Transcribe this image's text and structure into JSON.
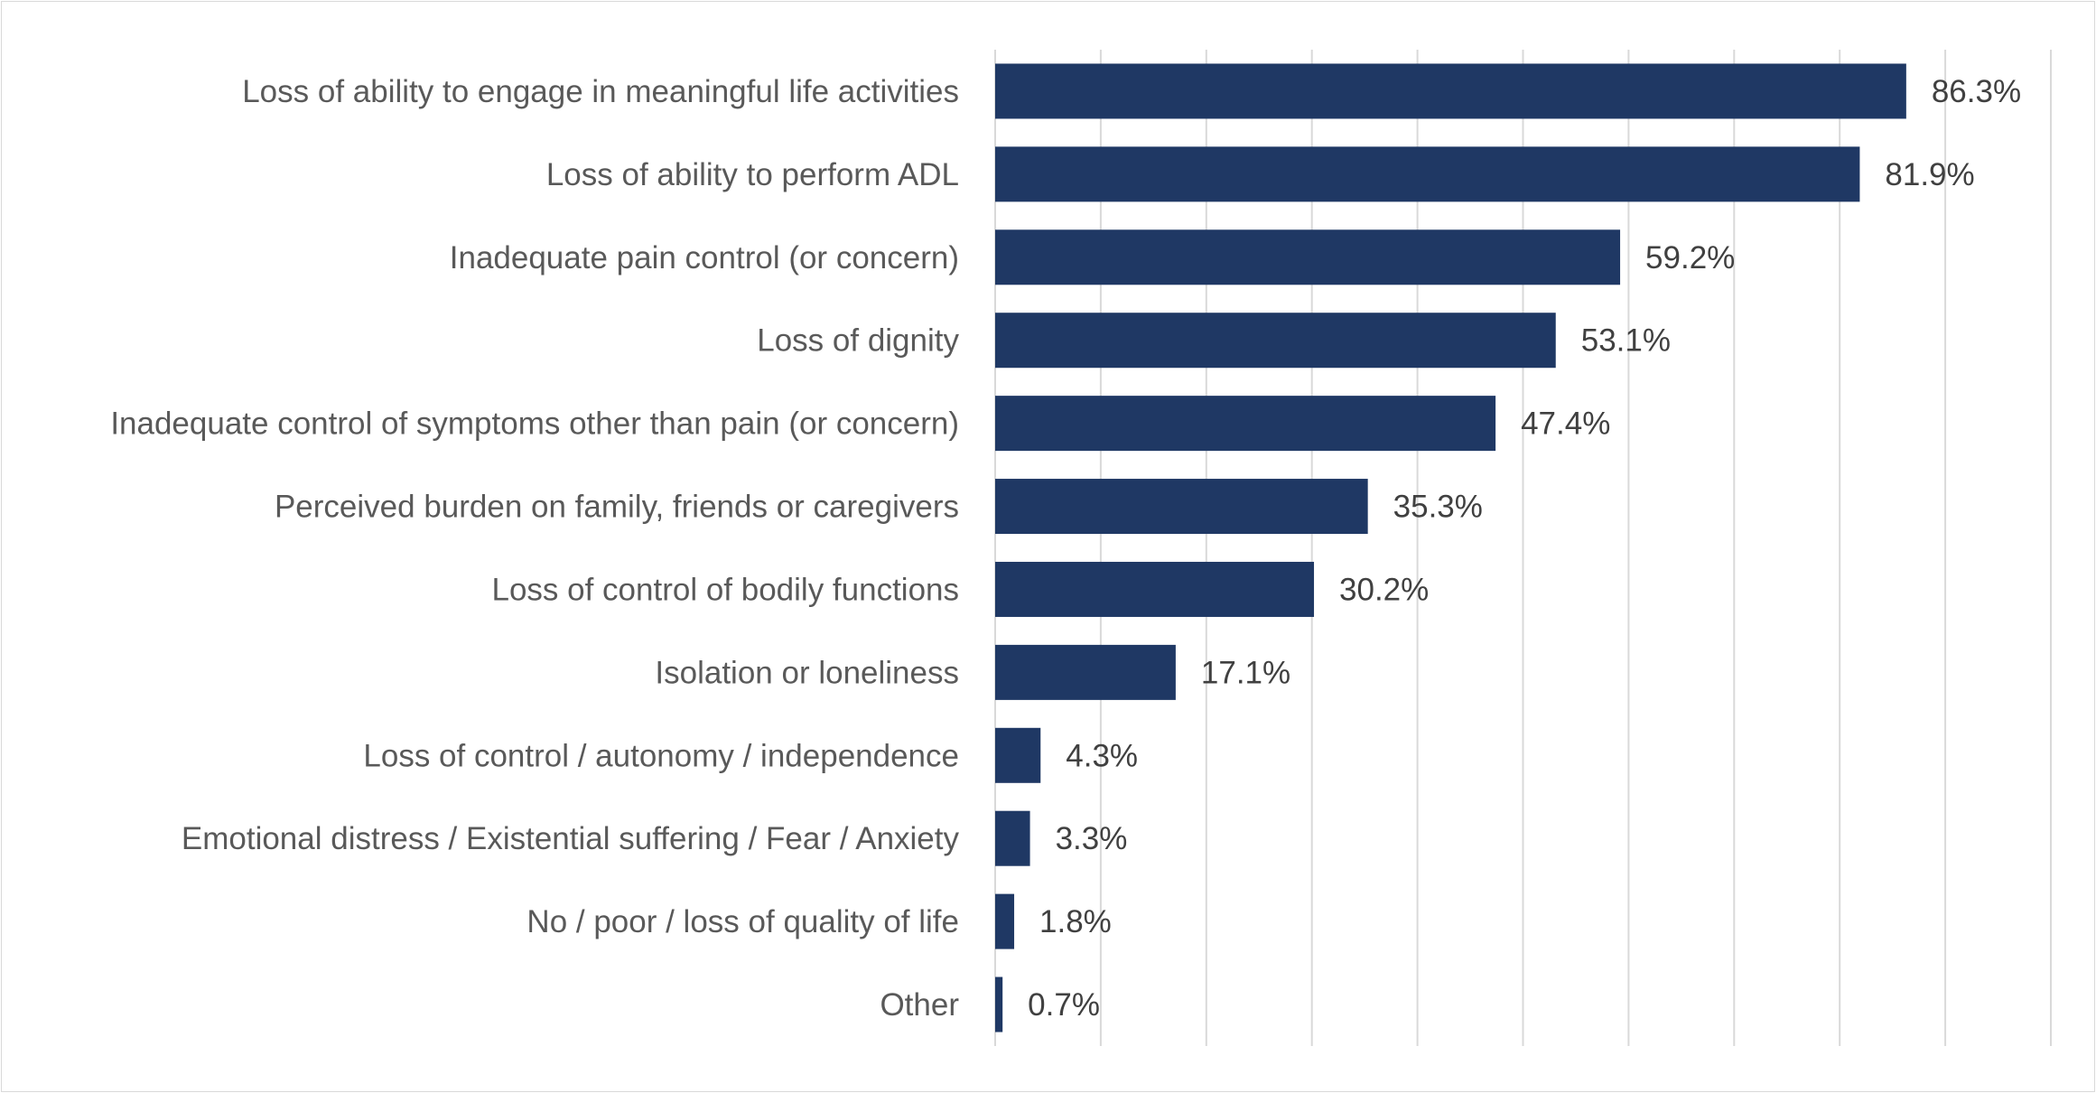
{
  "chart_data": {
    "type": "bar",
    "orientation": "horizontal",
    "title": "",
    "xlabel": "",
    "ylabel": "",
    "xlim": [
      0,
      100
    ],
    "grid": true,
    "legend": "none",
    "bar_color": "#1f3864",
    "value_suffix": "%",
    "categories": [
      "Loss of ability to engage in meaningful life activities",
      "Loss of ability to perform ADL",
      "Inadequate pain control (or concern)",
      "Loss of dignity",
      "Inadequate control of symptoms other than pain (or concern)",
      "Perceived burden on family, friends or caregivers",
      "Loss of control of bodily functions",
      "Isolation or loneliness",
      "Loss of control / autonomy / independence",
      "Emotional distress / Existential suffering / Fear / Anxiety",
      "No / poor / loss of quality of life",
      "Other"
    ],
    "values": [
      86.3,
      81.9,
      59.2,
      53.1,
      47.4,
      35.3,
      30.2,
      17.1,
      4.3,
      3.3,
      1.8,
      0.7
    ],
    "data_labels": [
      "86.3%",
      "81.9%",
      "59.2%",
      "53.1%",
      "47.4%",
      "35.3%",
      "30.2%",
      "17.1%",
      "4.3%",
      "3.3%",
      "1.8%",
      "0.7%"
    ]
  }
}
